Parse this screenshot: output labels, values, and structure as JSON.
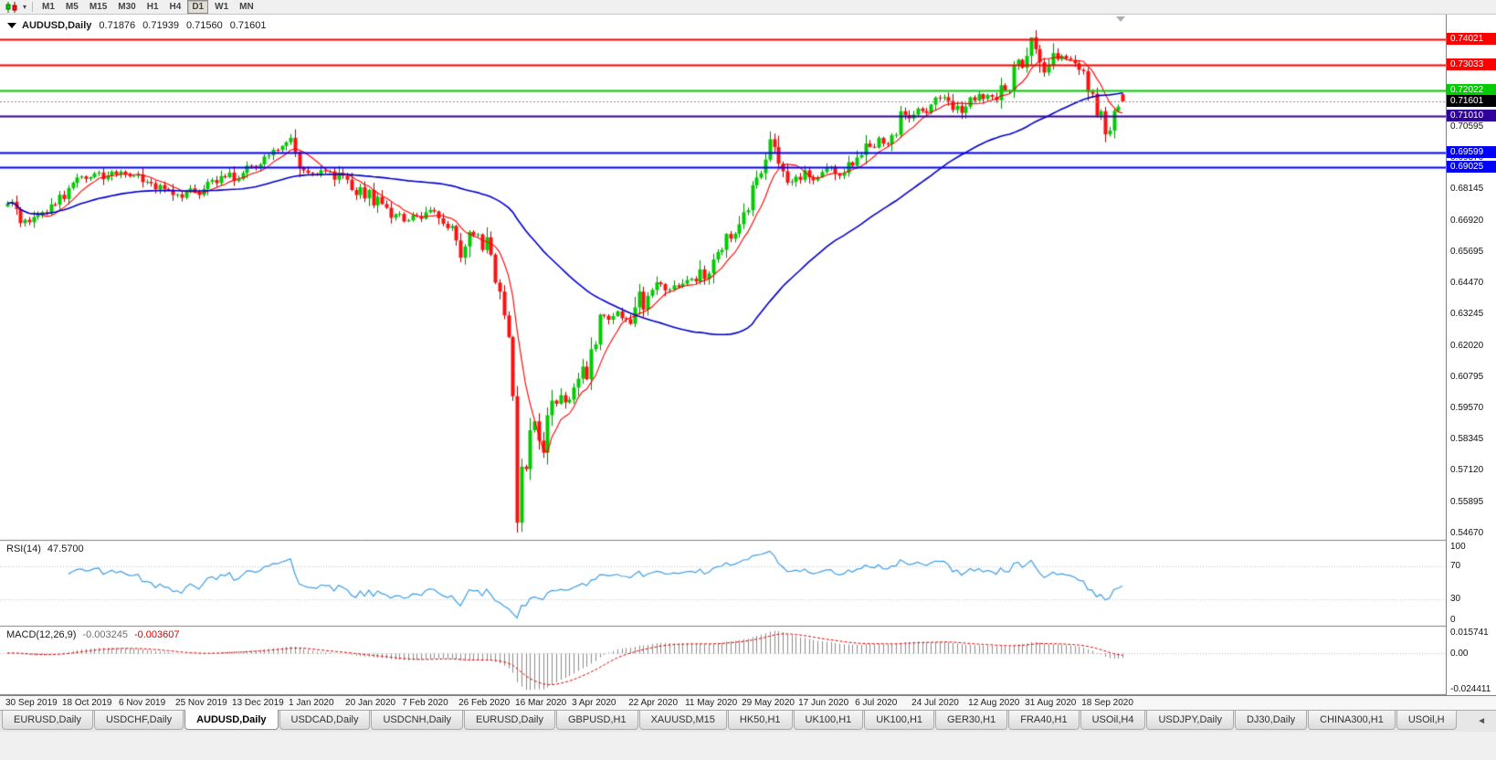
{
  "toolbar": {
    "timeframes": [
      {
        "label": "M1"
      },
      {
        "label": "M5"
      },
      {
        "label": "M15"
      },
      {
        "label": "M30"
      },
      {
        "label": "H1"
      },
      {
        "label": "H4"
      },
      {
        "label": "D1"
      },
      {
        "label": "W1"
      },
      {
        "label": "MN"
      }
    ],
    "active_timeframe": "D1"
  },
  "chart": {
    "title": {
      "symbol": "AUDUSD,Daily",
      "open": "0.71876",
      "high": "0.71939",
      "low": "0.71560",
      "close": "0.71601"
    },
    "price_axis": {
      "min": 0.5445,
      "max": 0.75,
      "labels": [
        "0.70595",
        "0.69370",
        "0.68145",
        "0.66920",
        "0.65695",
        "0.64470",
        "0.63245",
        "0.62020",
        "0.60795",
        "0.59570",
        "0.58345",
        "0.57120",
        "0.55895",
        "0.54670"
      ]
    },
    "levels": [
      {
        "price": "0.74021",
        "color": "#FF0000"
      },
      {
        "price": "0.73033",
        "color": "#FF0000"
      },
      {
        "price": "0.72022",
        "color": "#00CC00"
      },
      {
        "price": "0.71010",
        "color": "#30009C"
      },
      {
        "price": "0.69599",
        "color": "#0000FF"
      },
      {
        "price": "0.69025",
        "color": "#0000FF"
      }
    ],
    "current_price": {
      "price": "0.71601",
      "badge_color": "#000000"
    },
    "dates": [
      "30 Sep 2019",
      "18 Oct 2019",
      "6 Nov 2019",
      "25 Nov 2019",
      "13 Dec 2019",
      "1 Jan 2020",
      "20 Jan 2020",
      "7 Feb 2020",
      "26 Feb 2020",
      "16 Mar 2020",
      "3 Apr 2020",
      "22 Apr 2020",
      "11 May 2020",
      "29 May 2020",
      "17 Jun 2020",
      "6 Jul 2020",
      "24 Jul 2020",
      "12 Aug 2020",
      "31 Aug 2020",
      "18 Sep 2020"
    ]
  },
  "rsi": {
    "label": "RSI(14)",
    "value": "47.5700",
    "scale": [
      "100",
      "70",
      "30",
      "0"
    ],
    "levels": [
      70,
      30
    ],
    "line_color": "#3E9FE8"
  },
  "macd": {
    "label": "MACD(12,26,9)",
    "main_value": "-0.003245",
    "signal_value": "-0.003607",
    "scale_top": "0.015741",
    "scale_zero": "0.00",
    "scale_bottom": "-0.024411",
    "histogram_color": "#8C8C8C",
    "signal_color": "#E00000"
  },
  "tabs": {
    "items": [
      {
        "label": "EURUSD,Daily"
      },
      {
        "label": "USDCHF,Daily"
      },
      {
        "label": "AUDUSD,Daily"
      },
      {
        "label": "USDCAD,Daily"
      },
      {
        "label": "USDCNH,Daily"
      },
      {
        "label": "EURUSD,Daily"
      },
      {
        "label": "GBPUSD,H1"
      },
      {
        "label": "XAUUSD,M15"
      },
      {
        "label": "HK50,H1"
      },
      {
        "label": "UK100,H1"
      },
      {
        "label": "UK100,H1"
      },
      {
        "label": "GER30,H1"
      },
      {
        "label": "FRA40,H1"
      },
      {
        "label": "USOil,H4"
      },
      {
        "label": "USDJPY,Daily"
      },
      {
        "label": "DJ30,Daily"
      },
      {
        "label": "CHINA300,H1"
      },
      {
        "label": "USOil,H"
      }
    ],
    "active_index": 2,
    "scroll_icon": "◄"
  },
  "colors": {
    "up": "#00CC00",
    "up_stroke": "#008800",
    "down": "#FF1010",
    "down_stroke": "#AA0000",
    "ma_fast": "#FF0000",
    "ma_slow": "#0000CC"
  },
  "chart_data": {
    "type": "candlestick",
    "symbol": "AUDUSD",
    "timeframe": "Daily",
    "bars": 257,
    "x_range": [
      "30 Sep 2019",
      "1 Oct 2020"
    ],
    "y_range": [
      0.5445,
      0.75
    ],
    "last_bar": {
      "open": 0.71876,
      "high": 0.71939,
      "low": 0.7156,
      "close": 0.71601
    },
    "extremes": {
      "crash_low_bar": 117,
      "crash_low": 0.547,
      "peak_bar": 235,
      "peak_high": 0.7402
    },
    "horizontal_lines": [
      0.74021,
      0.73033,
      0.72022,
      0.7101,
      0.69599,
      0.69025
    ],
    "moving_averages": [
      {
        "period": 8,
        "color": "#FF0000"
      },
      {
        "period": 55,
        "color": "#0000CC"
      }
    ],
    "indicators": [
      {
        "name": "RSI",
        "period": 14,
        "current": 47.57
      },
      {
        "name": "MACD",
        "fast": 12,
        "slow": 26,
        "signal": 9,
        "current_main": -0.003245,
        "current_signal": -0.003607
      }
    ],
    "anchors_close": [
      [
        0,
        0.676
      ],
      [
        2,
        0.6715
      ],
      [
        5,
        0.669
      ],
      [
        8,
        0.6725
      ],
      [
        11,
        0.676
      ],
      [
        14,
        0.68
      ],
      [
        17,
        0.685
      ],
      [
        20,
        0.687
      ],
      [
        23,
        0.6855
      ],
      [
        26,
        0.6895
      ],
      [
        29,
        0.688
      ],
      [
        32,
        0.684
      ],
      [
        36,
        0.6805
      ],
      [
        39,
        0.6785
      ],
      [
        42,
        0.68
      ],
      [
        46,
        0.6825
      ],
      [
        49,
        0.6845
      ],
      [
        52,
        0.6865
      ],
      [
        55,
        0.6885
      ],
      [
        58,
        0.6905
      ],
      [
        61,
        0.696
      ],
      [
        63,
        0.7005
      ],
      [
        65,
        0.6985
      ],
      [
        67,
        0.6935
      ],
      [
        70,
        0.6895
      ],
      [
        74,
        0.687
      ],
      [
        78,
        0.6855
      ],
      [
        81,
        0.681
      ],
      [
        85,
        0.676
      ],
      [
        88,
        0.672
      ],
      [
        91,
        0.6685
      ],
      [
        94,
        0.6715
      ],
      [
        97,
        0.673
      ],
      [
        100,
        0.6695
      ],
      [
        102,
        0.665
      ],
      [
        104,
        0.6545
      ],
      [
        106,
        0.661
      ],
      [
        108,
        0.663
      ],
      [
        110,
        0.658
      ],
      [
        112,
        0.648
      ],
      [
        114,
        0.633
      ],
      [
        115,
        0.618
      ],
      [
        116,
        0.6
      ],
      [
        117,
        0.556
      ],
      [
        118,
        0.572
      ],
      [
        119,
        0.566
      ],
      [
        120,
        0.581
      ],
      [
        121,
        0.595
      ],
      [
        122,
        0.587
      ],
      [
        123,
        0.58
      ],
      [
        124,
        0.59
      ],
      [
        125,
        0.5975
      ],
      [
        126,
        0.601
      ],
      [
        128,
        0.598
      ],
      [
        130,
        0.6
      ],
      [
        132,
        0.608
      ],
      [
        134,
        0.62
      ],
      [
        136,
        0.633
      ],
      [
        138,
        0.629
      ],
      [
        140,
        0.632
      ],
      [
        143,
        0.629
      ],
      [
        145,
        0.636
      ],
      [
        147,
        0.642
      ],
      [
        149,
        0.645
      ],
      [
        151,
        0.6415
      ],
      [
        153,
        0.644
      ],
      [
        156,
        0.647
      ],
      [
        158,
        0.6435
      ],
      [
        160,
        0.6495
      ],
      [
        162,
        0.655
      ],
      [
        164,
        0.66
      ],
      [
        166,
        0.663
      ],
      [
        169,
        0.6665
      ],
      [
        171,
        0.679
      ],
      [
        173,
        0.6905
      ],
      [
        175,
        0.7
      ],
      [
        176,
        0.699
      ],
      [
        177,
        0.693
      ],
      [
        179,
        0.687
      ],
      [
        181,
        0.6855
      ],
      [
        183,
        0.6885
      ],
      [
        185,
        0.686
      ],
      [
        187,
        0.6875
      ],
      [
        189,
        0.6905
      ],
      [
        191,
        0.687
      ],
      [
        193,
        0.692
      ],
      [
        195,
        0.695
      ],
      [
        197,
        0.6975
      ],
      [
        199,
        0.699
      ],
      [
        201,
        0.701
      ],
      [
        203,
        0.704
      ],
      [
        205,
        0.7085
      ],
      [
        207,
        0.711
      ],
      [
        209,
        0.714
      ],
      [
        211,
        0.7125
      ],
      [
        213,
        0.7155
      ],
      [
        215,
        0.7185
      ],
      [
        217,
        0.7145
      ],
      [
        219,
        0.711
      ],
      [
        221,
        0.7165
      ],
      [
        223,
        0.718
      ],
      [
        225,
        0.7195
      ],
      [
        227,
        0.7185
      ],
      [
        229,
        0.7225
      ],
      [
        231,
        0.726
      ],
      [
        233,
        0.733
      ],
      [
        235,
        0.7398
      ],
      [
        236,
        0.737
      ],
      [
        237,
        0.7325
      ],
      [
        238,
        0.729
      ],
      [
        239,
        0.731
      ],
      [
        241,
        0.7335
      ],
      [
        243,
        0.734
      ],
      [
        245,
        0.731
      ],
      [
        247,
        0.7295
      ],
      [
        248,
        0.726
      ],
      [
        249,
        0.722
      ],
      [
        250,
        0.715
      ],
      [
        251,
        0.708
      ],
      [
        252,
        0.7035
      ],
      [
        253,
        0.706
      ],
      [
        254,
        0.7095
      ],
      [
        255,
        0.7135
      ],
      [
        256,
        0.716
      ]
    ]
  }
}
